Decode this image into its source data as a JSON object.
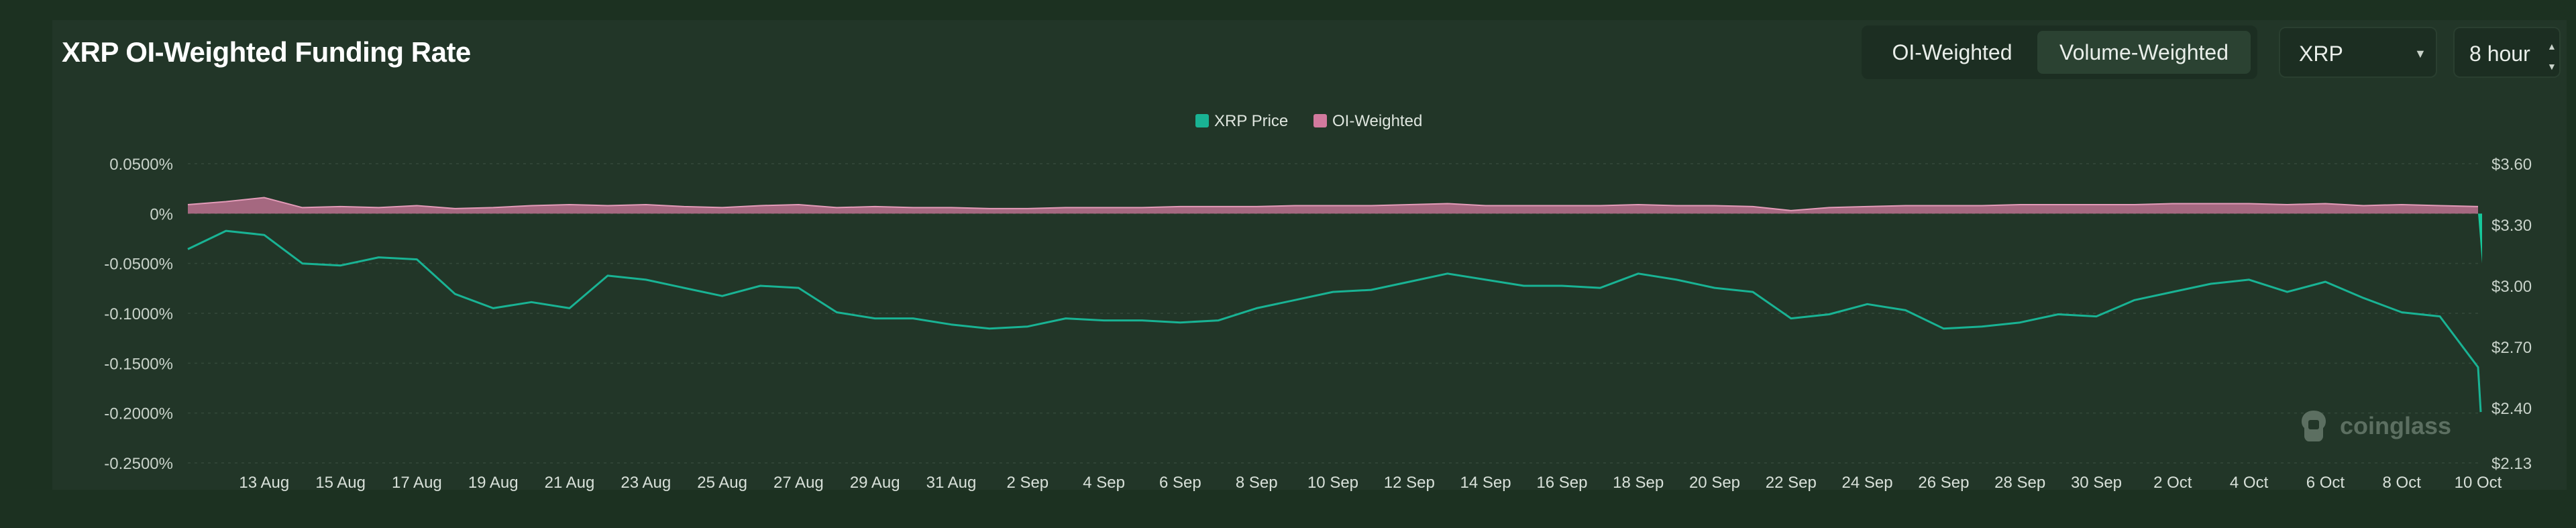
{
  "header": {
    "title": "XRP OI-Weighted Funding Rate",
    "toggle": {
      "options": [
        "OI-Weighted",
        "Volume-Weighted"
      ],
      "selected": "OI-Weighted"
    },
    "symbol_select": {
      "value": "XRP"
    },
    "interval_select": {
      "value": "8 hour"
    }
  },
  "watermark": {
    "text": "coinglass"
  },
  "colors": {
    "price": "#19b394",
    "funding": "#d27a9e",
    "price_drop": "#16c79a",
    "background": "#223628"
  },
  "chart_data": {
    "type": "area",
    "title": "XRP OI-Weighted Funding Rate",
    "legend": [
      "XRP Price",
      "OI-Weighted"
    ],
    "legend_position": "top-center",
    "grid": true,
    "x_tick_labels": [
      "13 Aug",
      "15 Aug",
      "17 Aug",
      "19 Aug",
      "21 Aug",
      "23 Aug",
      "25 Aug",
      "27 Aug",
      "29 Aug",
      "31 Aug",
      "2 Sep",
      "4 Sep",
      "6 Sep",
      "8 Sep",
      "10 Sep",
      "12 Sep",
      "14 Sep",
      "16 Sep",
      "18 Sep",
      "20 Sep",
      "22 Sep",
      "24 Sep",
      "26 Sep",
      "28 Sep",
      "30 Sep",
      "2 Oct",
      "4 Oct",
      "6 Oct",
      "8 Oct",
      "10 Oct"
    ],
    "y_left_ticks": [
      "0.0500%",
      "0%",
      "-0.0500%",
      "-0.1000%",
      "-0.1500%",
      "-0.2000%",
      "-0.2500%"
    ],
    "y_left_range": [
      -0.25,
      0.05
    ],
    "y_right_ticks": [
      "$3.60",
      "$3.30",
      "$3.00",
      "$2.70",
      "$2.40",
      "$2.13"
    ],
    "y_right_range": [
      2.13,
      3.6
    ],
    "x_range": [
      "11 Aug",
      "10 Oct"
    ],
    "series": [
      {
        "name": "XRP Price",
        "axis": "right",
        "x": [
          "11 Aug",
          "12 Aug",
          "13 Aug",
          "14 Aug",
          "15 Aug",
          "16 Aug",
          "17 Aug",
          "18 Aug",
          "19 Aug",
          "20 Aug",
          "21 Aug",
          "22 Aug",
          "23 Aug",
          "24 Aug",
          "25 Aug",
          "26 Aug",
          "27 Aug",
          "28 Aug",
          "29 Aug",
          "30 Aug",
          "31 Aug",
          "1 Sep",
          "2 Sep",
          "3 Sep",
          "4 Sep",
          "5 Sep",
          "6 Sep",
          "7 Sep",
          "8 Sep",
          "9 Sep",
          "10 Sep",
          "11 Sep",
          "12 Sep",
          "13 Sep",
          "14 Sep",
          "15 Sep",
          "16 Sep",
          "17 Sep",
          "18 Sep",
          "19 Sep",
          "20 Sep",
          "21 Sep",
          "22 Sep",
          "23 Sep",
          "24 Sep",
          "25 Sep",
          "26 Sep",
          "27 Sep",
          "28 Sep",
          "29 Sep",
          "30 Sep",
          "1 Oct",
          "2 Oct",
          "3 Oct",
          "4 Oct",
          "5 Oct",
          "6 Oct",
          "7 Oct",
          "8 Oct",
          "9 Oct",
          "10 Oct",
          "10 Oct"
        ],
        "values": [
          3.18,
          3.27,
          3.25,
          3.11,
          3.1,
          3.14,
          3.13,
          2.96,
          2.89,
          2.92,
          2.89,
          3.05,
          3.03,
          2.99,
          2.95,
          3.0,
          2.99,
          2.87,
          2.84,
          2.84,
          2.81,
          2.79,
          2.8,
          2.84,
          2.83,
          2.83,
          2.82,
          2.83,
          2.89,
          2.93,
          2.97,
          2.98,
          3.02,
          3.06,
          3.03,
          3.0,
          3.0,
          2.99,
          3.06,
          3.03,
          2.99,
          2.97,
          2.84,
          2.86,
          2.91,
          2.88,
          2.79,
          2.8,
          2.82,
          2.86,
          2.85,
          2.93,
          2.97,
          3.01,
          3.03,
          2.97,
          3.02,
          2.94,
          2.87,
          2.85,
          2.6,
          2.38
        ]
      },
      {
        "name": "OI-Weighted",
        "axis": "left",
        "x": [
          "11 Aug",
          "12 Aug",
          "13 Aug",
          "14 Aug",
          "15 Aug",
          "16 Aug",
          "17 Aug",
          "18 Aug",
          "19 Aug",
          "20 Aug",
          "21 Aug",
          "22 Aug",
          "23 Aug",
          "24 Aug",
          "25 Aug",
          "26 Aug",
          "27 Aug",
          "28 Aug",
          "29 Aug",
          "30 Aug",
          "31 Aug",
          "1 Sep",
          "2 Sep",
          "3 Sep",
          "4 Sep",
          "5 Sep",
          "6 Sep",
          "7 Sep",
          "8 Sep",
          "9 Sep",
          "10 Sep",
          "11 Sep",
          "12 Sep",
          "13 Sep",
          "14 Sep",
          "15 Sep",
          "16 Sep",
          "17 Sep",
          "18 Sep",
          "19 Sep",
          "20 Sep",
          "21 Sep",
          "22 Sep",
          "23 Sep",
          "24 Sep",
          "25 Sep",
          "26 Sep",
          "27 Sep",
          "28 Sep",
          "29 Sep",
          "30 Sep",
          "1 Oct",
          "2 Oct",
          "3 Oct",
          "4 Oct",
          "5 Oct",
          "6 Oct",
          "7 Oct",
          "8 Oct",
          "9 Oct",
          "10 Oct",
          "10 Oct"
        ],
        "values": [
          0.009,
          0.012,
          0.016,
          0.006,
          0.007,
          0.006,
          0.008,
          0.005,
          0.006,
          0.008,
          0.009,
          0.008,
          0.009,
          0.007,
          0.006,
          0.008,
          0.009,
          0.006,
          0.007,
          0.006,
          0.006,
          0.005,
          0.005,
          0.006,
          0.006,
          0.006,
          0.007,
          0.007,
          0.007,
          0.008,
          0.008,
          0.008,
          0.009,
          0.01,
          0.008,
          0.008,
          0.008,
          0.008,
          0.009,
          0.008,
          0.008,
          0.007,
          0.003,
          0.006,
          0.007,
          0.008,
          0.008,
          0.008,
          0.009,
          0.009,
          0.009,
          0.009,
          0.01,
          0.01,
          0.01,
          0.009,
          0.01,
          0.008,
          0.009,
          0.008,
          0.007,
          -0.05
        ]
      }
    ]
  }
}
